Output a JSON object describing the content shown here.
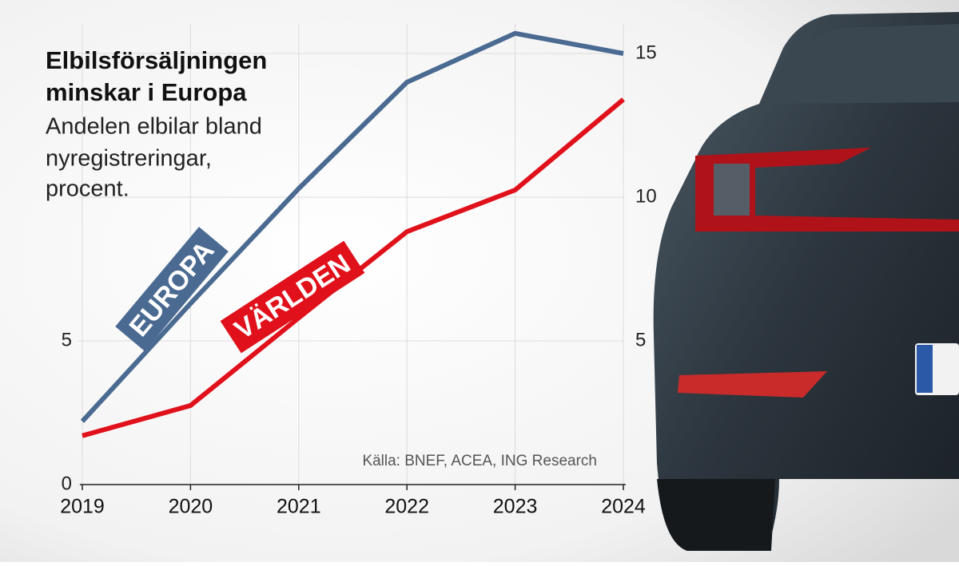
{
  "chart_data": {
    "type": "line",
    "title": [
      "Elbilsförsäljningen",
      "minskar i Europa"
    ],
    "subtitle": [
      "Andelen elbilar bland",
      "nyregistreringar,",
      "procent."
    ],
    "source": "Källa: BNEF, ACEA, ING Research",
    "categories": [
      "2019",
      "2020",
      "2021",
      "2022",
      "2023",
      "2024"
    ],
    "series": [
      {
        "name": "EUROPA",
        "color": "#4a6a91",
        "values": [
          2.2,
          6.3,
          10.3,
          14.0,
          15.7,
          15.0
        ]
      },
      {
        "name": "VÄRLDEN",
        "color": "#e0111b",
        "values": [
          1.7,
          2.75,
          5.8,
          8.8,
          10.25,
          13.4
        ]
      }
    ],
    "ylim": [
      0,
      15.7
    ],
    "yticks": [
      0,
      5,
      10,
      15
    ],
    "yticks_left": [
      0,
      5
    ],
    "yticks_right": [
      5,
      10,
      15
    ],
    "grid": true
  }
}
